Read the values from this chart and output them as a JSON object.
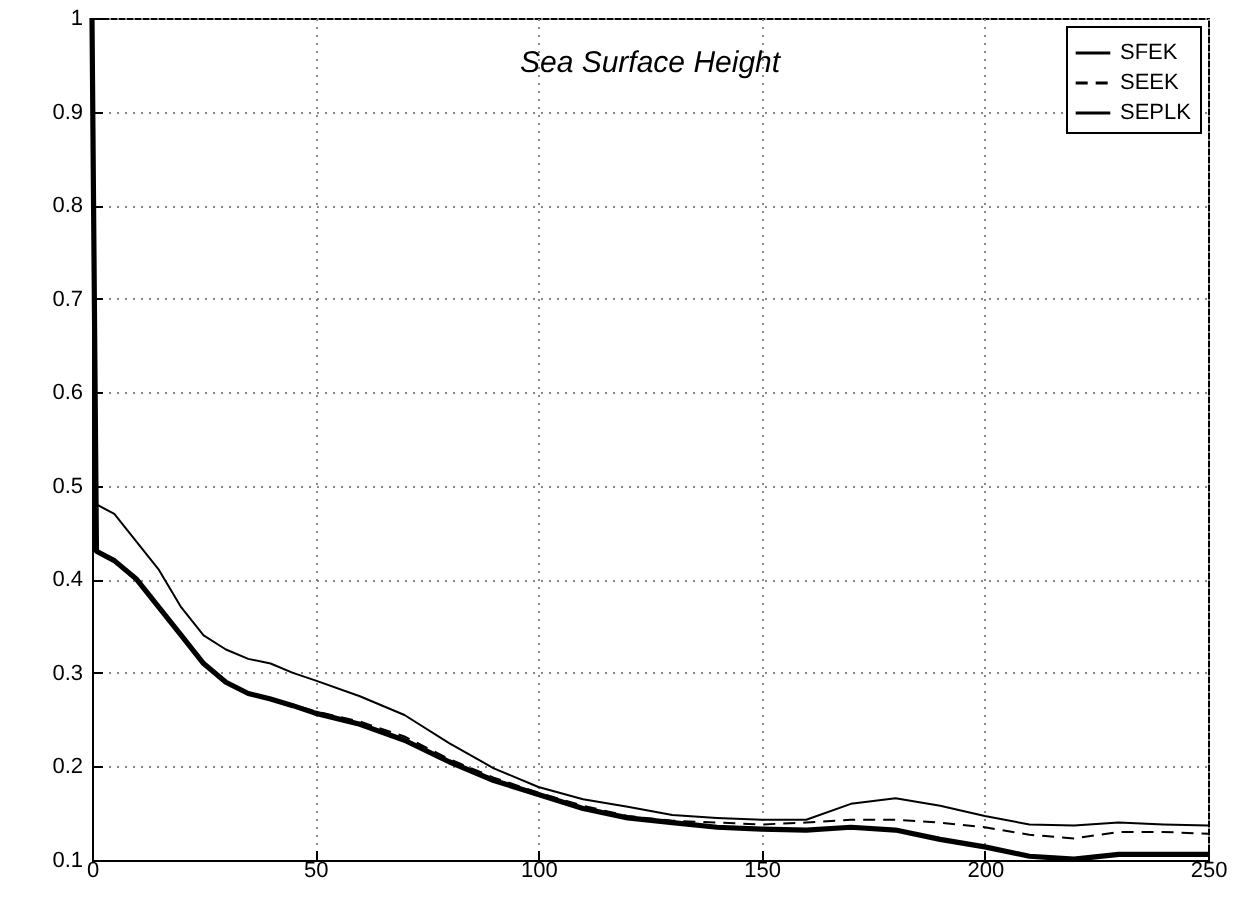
{
  "chart_data": {
    "type": "line",
    "title": "Sea Surface Height",
    "xlim": [
      0,
      250
    ],
    "ylim": [
      0.1,
      1
    ],
    "xticks": [
      0,
      50,
      100,
      150,
      200,
      250
    ],
    "yticks": [
      0.1,
      0.2,
      0.3,
      0.4,
      0.5,
      0.6,
      0.7,
      0.8,
      0.9,
      1
    ],
    "grid": true,
    "legend": "top right",
    "x": [
      0,
      1,
      5,
      10,
      15,
      20,
      25,
      30,
      35,
      40,
      45,
      50,
      60,
      70,
      80,
      90,
      100,
      110,
      120,
      130,
      140,
      150,
      160,
      170,
      180,
      190,
      200,
      210,
      220,
      230,
      240,
      250
    ],
    "series": [
      {
        "name": "SFEK",
        "color": "#000000",
        "line_style": "solid",
        "values": [
          1,
          0.48,
          0.47,
          0.44,
          0.41,
          0.37,
          0.34,
          0.325,
          0.315,
          0.31,
          0.3,
          0.292,
          0.275,
          0.255,
          0.225,
          0.198,
          0.178,
          0.165,
          0.157,
          0.148,
          0.145,
          0.143,
          0.143,
          0.16,
          0.166,
          0.158,
          0.147,
          0.138,
          0.137,
          0.14,
          0.138,
          0.137
        ]
      },
      {
        "name": "SEEK",
        "color": "#000000",
        "line_style": "dashed",
        "values": [
          1,
          0.43,
          0.42,
          0.4,
          0.37,
          0.34,
          0.31,
          0.29,
          0.279,
          0.273,
          0.266,
          0.259,
          0.248,
          0.232,
          0.208,
          0.188,
          0.172,
          0.158,
          0.147,
          0.142,
          0.14,
          0.138,
          0.14,
          0.143,
          0.143,
          0.14,
          0.135,
          0.127,
          0.123,
          0.13,
          0.13,
          0.128
        ]
      },
      {
        "name": "SEPLK",
        "color": "#000000",
        "line_style": "solid",
        "values": [
          1,
          0.43,
          0.42,
          0.4,
          0.37,
          0.34,
          0.31,
          0.29,
          0.278,
          0.272,
          0.265,
          0.257,
          0.245,
          0.228,
          0.205,
          0.185,
          0.17,
          0.155,
          0.145,
          0.14,
          0.135,
          0.133,
          0.132,
          0.135,
          0.132,
          0.122,
          0.114,
          0.104,
          0.101,
          0.106,
          0.106,
          0.106
        ]
      }
    ]
  }
}
